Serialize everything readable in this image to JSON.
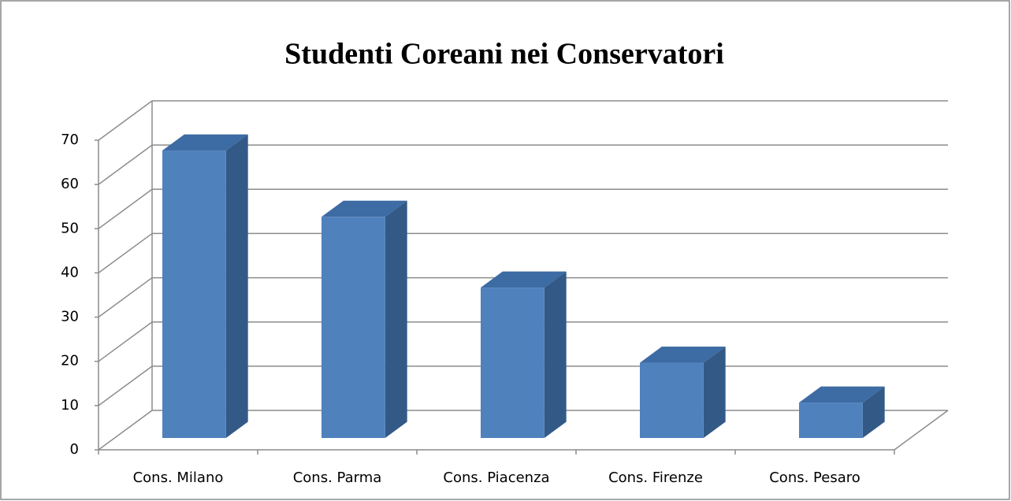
{
  "chart_data": {
    "type": "bar",
    "title": "Studenti Coreani  nei Conservatori",
    "categories": [
      "Cons. Milano",
      "Cons. Parma",
      "Cons. Piacenza",
      "Cons. Firenze",
      "Cons. Pesaro"
    ],
    "values": [
      65,
      50,
      34,
      17,
      8
    ],
    "color": "#4f81bd",
    "ylim": [
      0,
      70
    ],
    "yticks": [
      0,
      10,
      20,
      30,
      40,
      50,
      60,
      70
    ],
    "grid": true
  }
}
